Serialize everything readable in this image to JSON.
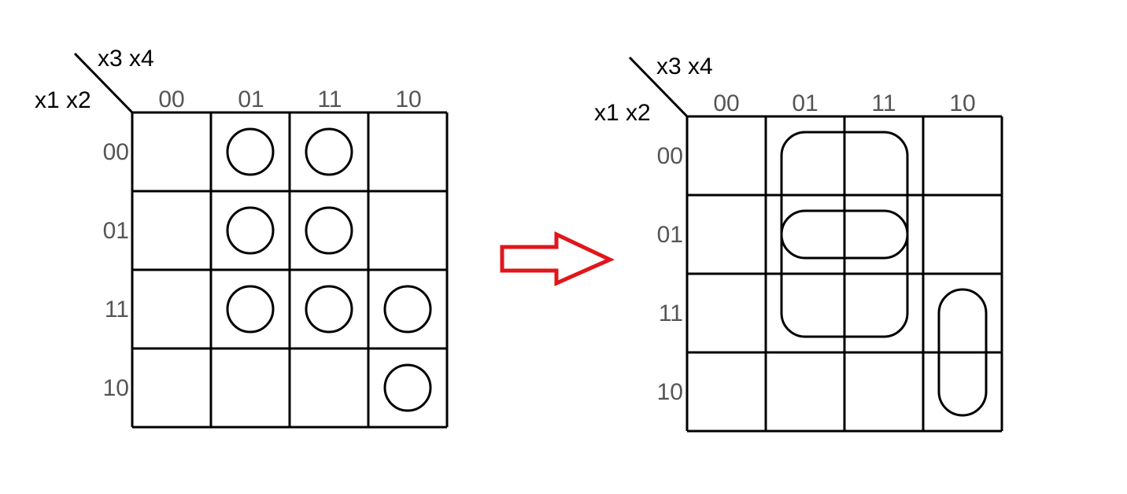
{
  "arrow_color": "#e0161b",
  "left_map": {
    "col_var": "x3 x4",
    "row_var": "x1 x2",
    "col_labels": [
      "00",
      "01",
      "11",
      "10"
    ],
    "row_labels": [
      "00",
      "01",
      "11",
      "10"
    ],
    "marked_cells": [
      [
        0,
        1
      ],
      [
        0,
        2
      ],
      [
        1,
        1
      ],
      [
        1,
        2
      ],
      [
        2,
        1
      ],
      [
        2,
        2
      ],
      [
        2,
        3
      ],
      [
        3,
        3
      ]
    ]
  },
  "right_map": {
    "col_var": "x3 x4",
    "row_var": "x1 x2",
    "col_labels": [
      "00",
      "01",
      "11",
      "10"
    ],
    "row_labels": [
      "00",
      "01",
      "11",
      "10"
    ],
    "groups": [
      {
        "rows": [
          0,
          2
        ],
        "cols": [
          1,
          2
        ]
      },
      {
        "rows": [
          1,
          1
        ],
        "cols": [
          1,
          2
        ]
      },
      {
        "rows": [
          2,
          3
        ],
        "cols": [
          3,
          3
        ]
      }
    ]
  }
}
